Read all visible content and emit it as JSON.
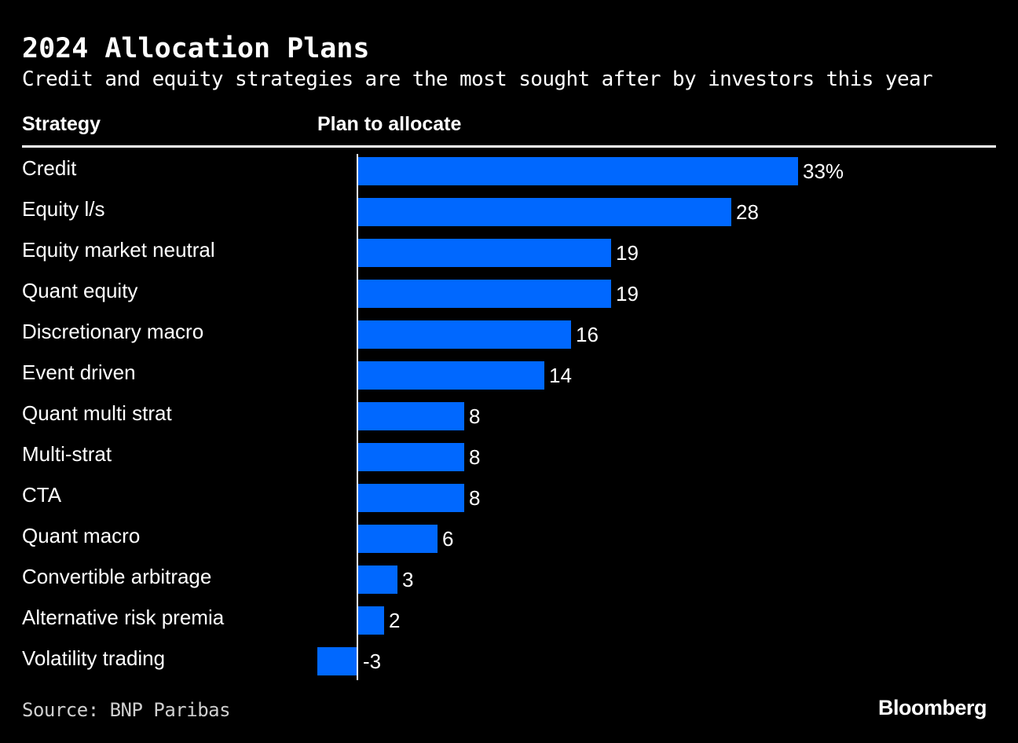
{
  "header": {
    "title": "2024 Allocation Plans",
    "subtitle": "Credit and equity strategies are the most sought after by investors this year",
    "col_strategy": "Strategy",
    "col_plan": "Plan to allocate"
  },
  "footer": {
    "source": "Source: BNP Paribas",
    "logo_text": "Bloomberg"
  },
  "colors": {
    "background": "#000000",
    "bar": "#0068ff",
    "text": "#ffffff",
    "axis": "#ffffff"
  },
  "chart_data": {
    "type": "bar",
    "orientation": "horizontal",
    "title": "2024 Allocation Plans",
    "subtitle": "Credit and equity strategies are the most sought after by investors this year",
    "categories": [
      "Credit",
      "Equity l/s",
      "Equity market neutral",
      "Quant equity",
      "Discretionary macro",
      "Event driven",
      "Quant multi strat",
      "Multi-strat",
      "CTA",
      "Quant macro",
      "Convertible arbitrage",
      "Alternative risk premia",
      "Volatility trading"
    ],
    "values": [
      33,
      28,
      19,
      19,
      16,
      14,
      8,
      8,
      8,
      6,
      3,
      2,
      -3
    ],
    "value_labels": [
      "33%",
      "28",
      "19",
      "19",
      "16",
      "14",
      "8",
      "8",
      "8",
      "6",
      "3",
      "2",
      "-3"
    ],
    "unit": "%",
    "xlim": [
      -3,
      33
    ],
    "grid": false,
    "legend": "none"
  }
}
